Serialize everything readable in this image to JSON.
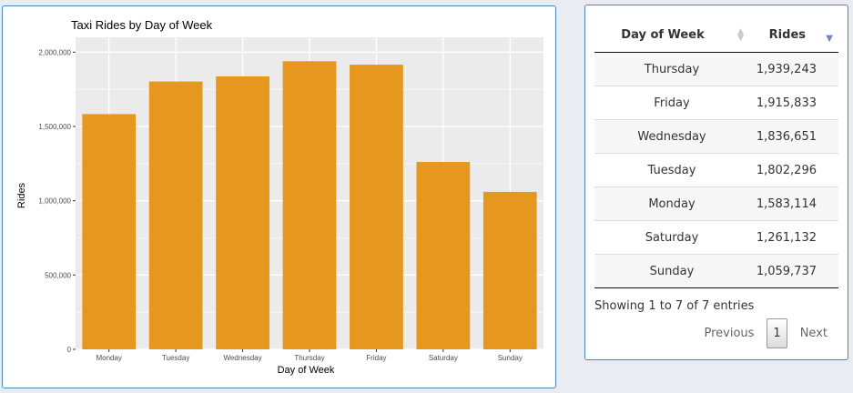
{
  "chart_data": {
    "type": "bar",
    "title": "Taxi Rides by Day of Week",
    "xlabel": "Day of Week",
    "ylabel": "Rides",
    "categories": [
      "Monday",
      "Tuesday",
      "Wednesday",
      "Thursday",
      "Friday",
      "Saturday",
      "Sunday"
    ],
    "values": [
      1583114,
      1802296,
      1836651,
      1939243,
      1915833,
      1261132,
      1059737
    ],
    "ylim": [
      0,
      2100000
    ],
    "yticks": [
      0,
      500000,
      1000000,
      1500000,
      2000000
    ],
    "ytick_labels": [
      "0",
      "500,000",
      "1,000,000",
      "1,500,000",
      "2,000,000"
    ],
    "grid": true,
    "colors": {
      "bar": "#e69720",
      "panel_bg": "#ebebeb",
      "grid": "#ffffff"
    }
  },
  "table": {
    "columns": [
      "Day of Week",
      "Rides"
    ],
    "sort": {
      "column": "Rides",
      "direction": "desc"
    },
    "rows": [
      {
        "day": "Thursday",
        "rides": "1,939,243"
      },
      {
        "day": "Friday",
        "rides": "1,915,833"
      },
      {
        "day": "Wednesday",
        "rides": "1,836,651"
      },
      {
        "day": "Tuesday",
        "rides": "1,802,296"
      },
      {
        "day": "Monday",
        "rides": "1,583,114"
      },
      {
        "day": "Saturday",
        "rides": "1,261,132"
      },
      {
        "day": "Sunday",
        "rides": "1,059,737"
      }
    ],
    "info": "Showing 1 to 7 of 7 entries",
    "pagination": {
      "previous": "Previous",
      "current": "1",
      "next": "Next"
    }
  }
}
